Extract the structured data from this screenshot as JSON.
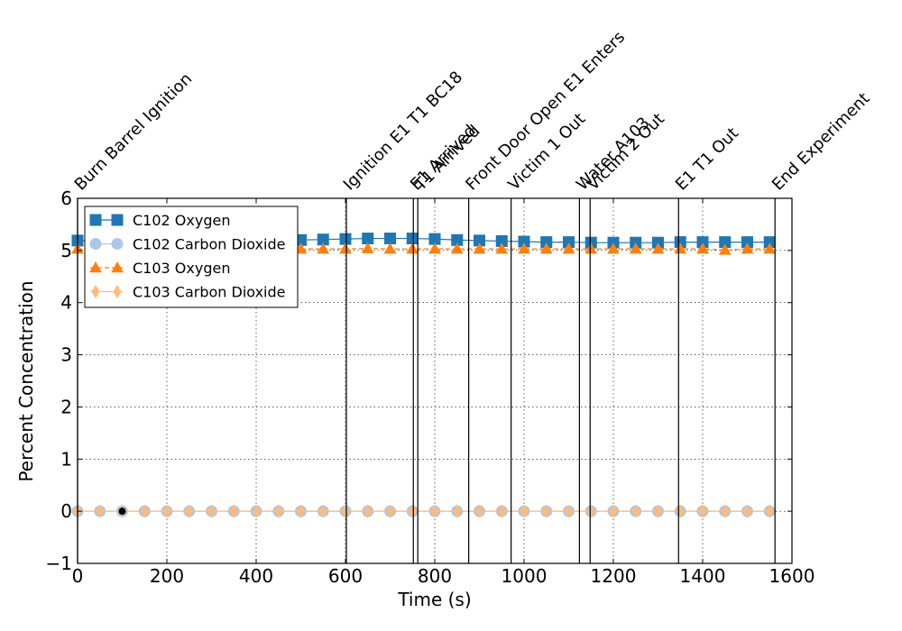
{
  "chart_data": {
    "type": "line",
    "title": "",
    "xlabel": "Time (s)",
    "ylabel": "Percent Concentration",
    "xlim": [
      0,
      1600
    ],
    "ylim": [
      -1,
      6
    ],
    "xticks": [
      0,
      200,
      400,
      600,
      800,
      1000,
      1200,
      1400,
      1600
    ],
    "yticks": [
      -1,
      0,
      1,
      2,
      3,
      4,
      5,
      6
    ],
    "grid": true,
    "legend_position": "upper-left",
    "events": [
      {
        "time": 0,
        "label": "Burn Barrel Ignition"
      },
      {
        "time": 602,
        "label": "Ignition E1 T1 BC18"
      },
      {
        "time": 752,
        "label": "E1 Arrived"
      },
      {
        "time": 762,
        "label": "T1 Arrived"
      },
      {
        "time": 876,
        "label": "Front Door Open E1 Enters"
      },
      {
        "time": 971,
        "label": "Victim 1 Out"
      },
      {
        "time": 1124,
        "label": "Water A103"
      },
      {
        "time": 1148,
        "label": "Victim 2 Out"
      },
      {
        "time": 1346,
        "label": "E1 T1 Out"
      },
      {
        "time": 1562,
        "label": "End Experiment"
      }
    ],
    "x": [
      0,
      50,
      100,
      150,
      200,
      250,
      300,
      350,
      400,
      450,
      500,
      550,
      600,
      650,
      700,
      750,
      800,
      850,
      900,
      950,
      1000,
      1050,
      1100,
      1150,
      1200,
      1250,
      1300,
      1350,
      1400,
      1450,
      1500,
      1550
    ],
    "series": [
      {
        "name": "C102 Oxygen",
        "color": "#1f77b4",
        "marker": "square",
        "linestyle": "solid",
        "values": [
          5.19,
          5.19,
          5.19,
          5.19,
          5.19,
          5.19,
          5.19,
          5.19,
          5.19,
          5.19,
          5.2,
          5.21,
          5.22,
          5.23,
          5.23,
          5.23,
          5.22,
          5.2,
          5.19,
          5.18,
          5.17,
          5.16,
          5.16,
          5.15,
          5.15,
          5.15,
          5.15,
          5.16,
          5.16,
          5.16,
          5.16,
          5.16
        ]
      },
      {
        "name": "C102 Carbon Dioxide",
        "color": "#aec7e8",
        "marker": "circle",
        "linestyle": "solid",
        "values": [
          0,
          0,
          0,
          0,
          0,
          0,
          0,
          0,
          0,
          0,
          0,
          0,
          0,
          0,
          0,
          0,
          0,
          0,
          0,
          0,
          0,
          0,
          0,
          0,
          0,
          0,
          0,
          0,
          0,
          0,
          0,
          0
        ]
      },
      {
        "name": "C103 Oxygen",
        "color": "#ff7f0e",
        "marker": "triangle",
        "linestyle": "dashed",
        "values": [
          5.03,
          5.03,
          5.03,
          5.03,
          5.03,
          5.03,
          5.03,
          5.03,
          5.03,
          5.03,
          5.03,
          5.03,
          5.03,
          5.04,
          5.03,
          5.03,
          5.03,
          5.03,
          5.03,
          5.03,
          5.03,
          5.03,
          5.03,
          5.03,
          5.03,
          5.03,
          5.03,
          5.03,
          5.03,
          5.01,
          5.03,
          5.03
        ]
      },
      {
        "name": "C103 Carbon Dioxide",
        "color": "#ffbb78",
        "marker": "diamond",
        "linestyle": "solid",
        "values": [
          0,
          0,
          0,
          0,
          0,
          0,
          0,
          0,
          0,
          0,
          0,
          0,
          0,
          0,
          0,
          0,
          0,
          0,
          0,
          0,
          0,
          0,
          0,
          0,
          0,
          0,
          0,
          0,
          0,
          0,
          0,
          0
        ]
      }
    ],
    "highlight_point": {
      "x": 100,
      "y": 0,
      "color": "#000000"
    }
  }
}
